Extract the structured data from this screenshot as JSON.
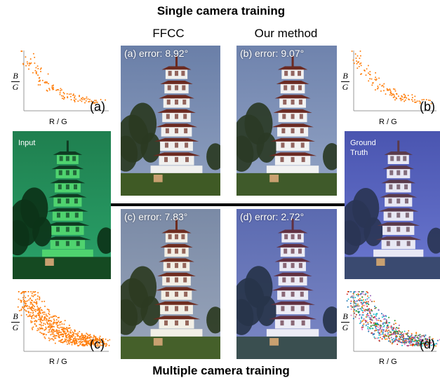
{
  "titles": {
    "top": "Single camera training",
    "bottom": "Multiple camera training"
  },
  "methods": {
    "left": "FFCC",
    "right": "Our method"
  },
  "panels": {
    "a": "(a) error: 8.92°",
    "b": "(b) error: 9.07°",
    "c": "(c) error: 7.83°",
    "d": "(d) error: 2.72°"
  },
  "plots": {
    "ylabel_num": "B",
    "ylabel_den": "G",
    "xlabel": "R / G",
    "tags": [
      "(a)",
      "(b)",
      "(c)",
      "(d)"
    ]
  },
  "side_images": {
    "input_label": "Input",
    "ground_truth_label": "Ground Truth"
  },
  "colors": {
    "scatter_single": "#ff7f0e",
    "input_tint": "#2e8b57",
    "gt_tint": "#5b6bbf",
    "divider": "#000000"
  }
}
